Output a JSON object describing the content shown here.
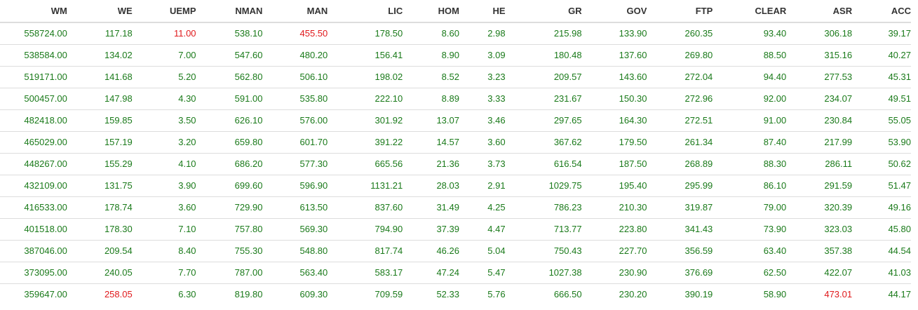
{
  "table": {
    "columns": [
      "WM",
      "WE",
      "UEMP",
      "NMAN",
      "MAN",
      "LIC",
      "HOM",
      "HE",
      "GR",
      "GOV",
      "FTP",
      "CLEAR",
      "ASR",
      "ACC"
    ],
    "rows": [
      [
        "558724.00",
        "117.18",
        "11.00",
        "538.10",
        "455.50",
        "178.50",
        "8.60",
        "2.98",
        "215.98",
        "133.90",
        "260.35",
        "93.40",
        "306.18",
        "39.17"
      ],
      [
        "538584.00",
        "134.02",
        "7.00",
        "547.60",
        "480.20",
        "156.41",
        "8.90",
        "3.09",
        "180.48",
        "137.60",
        "269.80",
        "88.50",
        "315.16",
        "40.27"
      ],
      [
        "519171.00",
        "141.68",
        "5.20",
        "562.80",
        "506.10",
        "198.02",
        "8.52",
        "3.23",
        "209.57",
        "143.60",
        "272.04",
        "94.40",
        "277.53",
        "45.31"
      ],
      [
        "500457.00",
        "147.98",
        "4.30",
        "591.00",
        "535.80",
        "222.10",
        "8.89",
        "3.33",
        "231.67",
        "150.30",
        "272.96",
        "92.00",
        "234.07",
        "49.51"
      ],
      [
        "482418.00",
        "159.85",
        "3.50",
        "626.10",
        "576.00",
        "301.92",
        "13.07",
        "3.46",
        "297.65",
        "164.30",
        "272.51",
        "91.00",
        "230.84",
        "55.05"
      ],
      [
        "465029.00",
        "157.19",
        "3.20",
        "659.80",
        "601.70",
        "391.22",
        "14.57",
        "3.60",
        "367.62",
        "179.50",
        "261.34",
        "87.40",
        "217.99",
        "53.90"
      ],
      [
        "448267.00",
        "155.29",
        "4.10",
        "686.20",
        "577.30",
        "665.56",
        "21.36",
        "3.73",
        "616.54",
        "187.50",
        "268.89",
        "88.30",
        "286.11",
        "50.62"
      ],
      [
        "432109.00",
        "131.75",
        "3.90",
        "699.60",
        "596.90",
        "1131.21",
        "28.03",
        "2.91",
        "1029.75",
        "195.40",
        "295.99",
        "86.10",
        "291.59",
        "51.47"
      ],
      [
        "416533.00",
        "178.74",
        "3.60",
        "729.90",
        "613.50",
        "837.60",
        "31.49",
        "4.25",
        "786.23",
        "210.30",
        "319.87",
        "79.00",
        "320.39",
        "49.16"
      ],
      [
        "401518.00",
        "178.30",
        "7.10",
        "757.80",
        "569.30",
        "794.90",
        "37.39",
        "4.47",
        "713.77",
        "223.80",
        "341.43",
        "73.90",
        "323.03",
        "45.80"
      ],
      [
        "387046.00",
        "209.54",
        "8.40",
        "755.30",
        "548.80",
        "817.74",
        "46.26",
        "5.04",
        "750.43",
        "227.70",
        "356.59",
        "63.40",
        "357.38",
        "44.54"
      ],
      [
        "373095.00",
        "240.05",
        "7.70",
        "787.00",
        "563.40",
        "583.17",
        "47.24",
        "5.47",
        "1027.38",
        "230.90",
        "376.69",
        "62.50",
        "422.07",
        "41.03"
      ],
      [
        "359647.00",
        "258.05",
        "6.30",
        "819.80",
        "609.30",
        "709.59",
        "52.33",
        "5.76",
        "666.50",
        "230.20",
        "390.19",
        "58.90",
        "473.01",
        "44.17"
      ]
    ],
    "highlight_colors": {
      "default": "#1a7a1a",
      "flagged": "#e0191c"
    },
    "flagged_cells": [
      {
        "row": 0,
        "col": 2
      },
      {
        "row": 0,
        "col": 4
      },
      {
        "row": 12,
        "col": 1
      },
      {
        "row": 12,
        "col": 12
      }
    ]
  }
}
